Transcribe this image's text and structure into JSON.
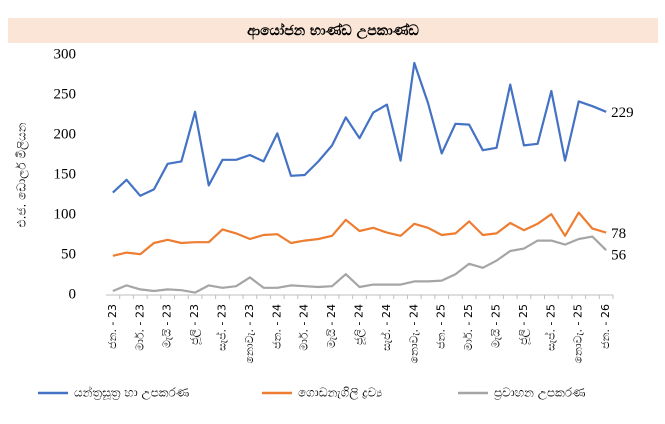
{
  "chart_data": {
    "type": "line",
    "title": "ආයෝජන භාණ්ඩ උපකාණ්ඩ",
    "y_label": "එ.ජ. ඩොලර් මිලියන",
    "categories": [
      "ජන. - 23",
      null,
      "මාර්. - 23",
      null,
      "මැයි - 23",
      null,
      "ජූලි - 23",
      null,
      "සැප්. - 23",
      null,
      "නොවැ. - 23",
      null,
      "ජන. - 24",
      null,
      "මාර්. - 24",
      null,
      "මැයි - 24",
      null,
      "ජූලි - 24",
      null,
      "සැප්. - 24",
      null,
      "නොවැ. - 24",
      null,
      "ජන. - 25",
      null,
      "මාර්. - 25",
      null,
      "මැයි - 25",
      null,
      "ජූලි - 25",
      null,
      "සැප්. - 25",
      null,
      "නොවැ. - 25",
      null,
      "ජන. - 26"
    ],
    "series": [
      {
        "name": "යන්ත්‍රසූත්‍ර හා උපකරණ",
        "color": "#4472c4",
        "values": [
          128,
          144,
          124,
          132,
          164,
          167,
          229,
          137,
          169,
          169,
          175,
          167,
          202,
          149,
          150,
          167,
          187,
          222,
          196,
          228,
          238,
          168,
          290,
          240,
          177,
          214,
          213,
          181,
          184,
          263,
          187,
          189,
          255,
          168,
          242,
          236,
          229
        ]
      },
      {
        "name": "ගොඩනැගිලි ද්‍රව්‍ය",
        "color": "#ed7d31",
        "values": [
          49,
          53,
          51,
          65,
          69,
          65,
          66,
          66,
          82,
          77,
          70,
          75,
          76,
          65,
          68,
          70,
          74,
          94,
          80,
          84,
          78,
          74,
          89,
          84,
          75,
          77,
          92,
          75,
          77,
          90,
          81,
          89,
          101,
          74,
          103,
          83,
          78
        ]
      },
      {
        "name": "ප්‍රවාහන උපකරණ",
        "color": "#a5a5a5",
        "values": [
          5,
          12,
          7,
          5,
          7,
          6,
          3,
          12,
          9,
          11,
          22,
          9,
          9,
          12,
          11,
          10,
          11,
          26,
          10,
          13,
          13,
          13,
          17,
          17,
          18,
          26,
          39,
          34,
          43,
          55,
          58,
          68,
          68,
          63,
          70,
          73,
          56
        ]
      }
    ],
    "ylim": [
      0,
      300
    ],
    "yticks": [
      0,
      50,
      100,
      150,
      200,
      250,
      300
    ],
    "grid": false,
    "legend": "bottom",
    "end_labels": true
  }
}
